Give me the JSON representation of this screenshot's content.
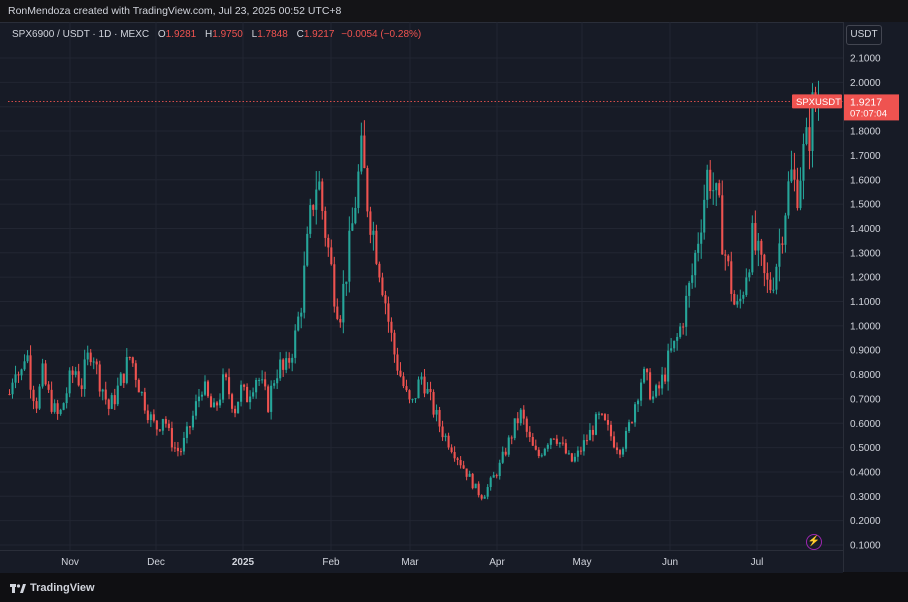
{
  "credit": "RonMendoza created with TradingView.com, Jul 23, 2025 00:52 UTC+8",
  "legend": {
    "symbol": "SPX6900 / USDT · 1D · MEXC",
    "o_label": "O",
    "o_value": "1.9281",
    "h_label": "H",
    "h_value": "1.9750",
    "l_label": "L",
    "l_value": "1.7848",
    "c_label": "C",
    "c_value": "1.9217",
    "change": "−0.0054 (−0.28%)"
  },
  "currency": "USDT",
  "brand": "TradingView",
  "price_tag": {
    "symbol": "SPXUSDT",
    "price": "1.9217",
    "countdown": "07:07:04"
  },
  "colors": {
    "up": "#26a69a",
    "down": "#ef5350",
    "bg": "#171b26",
    "grid": "#222632"
  },
  "chart_data": {
    "type": "candlestick",
    "ylim": [
      0.05,
      2.2
    ],
    "yticks": [
      "2.1000",
      "2.0000",
      "1.9000",
      "1.8000",
      "1.7000",
      "1.6000",
      "1.5000",
      "1.4000",
      "1.3000",
      "1.2000",
      "1.1000",
      "1.0000",
      "0.9000",
      "0.8000",
      "0.7000",
      "0.6000",
      "0.5000",
      "0.4000",
      "0.3000",
      "0.2000",
      "0.1000"
    ],
    "xticks": [
      "Nov",
      "Dec",
      "2025",
      "Feb",
      "Mar",
      "Apr",
      "May",
      "Jun",
      "Jul"
    ],
    "last_price": 1.9217,
    "close_series": [
      0.72,
      0.85,
      0.78,
      0.92,
      0.75,
      0.68,
      0.8,
      0.72,
      0.66,
      0.62,
      0.7,
      0.78,
      0.82,
      0.75,
      0.85,
      0.92,
      0.8,
      0.74,
      0.66,
      0.7,
      0.76,
      0.82,
      0.88,
      0.8,
      0.72,
      0.66,
      0.6,
      0.58,
      0.64,
      0.55,
      0.5,
      0.48,
      0.54,
      0.6,
      0.68,
      0.76,
      0.7,
      0.64,
      0.7,
      0.78,
      0.72,
      0.66,
      0.74,
      0.7,
      0.76,
      0.8,
      0.74,
      0.68,
      0.78,
      0.84,
      0.8,
      0.88,
      0.96,
      1.1,
      1.3,
      1.5,
      1.62,
      1.45,
      1.3,
      1.15,
      1.05,
      1.2,
      1.35,
      1.55,
      1.7,
      1.52,
      1.4,
      1.28,
      1.15,
      1.0,
      0.88,
      0.8,
      0.72,
      0.66,
      0.74,
      0.8,
      0.72,
      0.66,
      0.6,
      0.55,
      0.52,
      0.48,
      0.44,
      0.4,
      0.36,
      0.32,
      0.3,
      0.34,
      0.38,
      0.42,
      0.48,
      0.54,
      0.6,
      0.64,
      0.56,
      0.5,
      0.46,
      0.5,
      0.54,
      0.56,
      0.52,
      0.48,
      0.44,
      0.46,
      0.5,
      0.54,
      0.58,
      0.62,
      0.6,
      0.56,
      0.52,
      0.5,
      0.54,
      0.62,
      0.72,
      0.8,
      0.76,
      0.7,
      0.74,
      0.8,
      0.88,
      0.92,
      1.0,
      1.1,
      1.2,
      1.35,
      1.5,
      1.65,
      1.55,
      1.45,
      1.3,
      1.18,
      1.05,
      1.12,
      1.25,
      1.35,
      1.28,
      1.2,
      1.15,
      1.22,
      1.35,
      1.5,
      1.62,
      1.55,
      1.68,
      1.75,
      1.9,
      1.92
    ]
  }
}
